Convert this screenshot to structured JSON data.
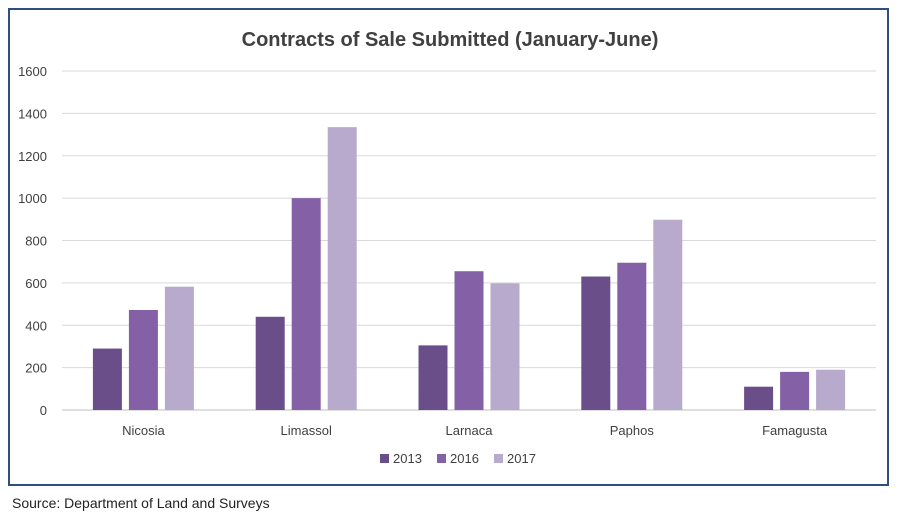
{
  "chart_data": {
    "type": "bar",
    "title": "Contracts of Sale Submitted (January-June)",
    "xlabel": "",
    "ylabel": "",
    "categories": [
      "Nicosia",
      "Limassol",
      "Larnaca",
      "Paphos",
      "Famagusta"
    ],
    "ylim": [
      0,
      1600
    ],
    "yticks": [
      "0",
      "200",
      "400",
      "600",
      "800",
      "1000",
      "1200",
      "1400",
      "1600"
    ],
    "grid": true,
    "legend_position": "bottom",
    "series": [
      {
        "name": "2013",
        "color": "#6a4e8a",
        "values": [
          290,
          440,
          305,
          630,
          110
        ]
      },
      {
        "name": "2016",
        "color": "#8461a6",
        "values": [
          472,
          1000,
          655,
          695,
          180
        ]
      },
      {
        "name": "2017",
        "color": "#b8aacc",
        "values": [
          582,
          1335,
          598,
          898,
          190
        ]
      }
    ]
  },
  "source_note": "Source: Department of Land and Surveys"
}
